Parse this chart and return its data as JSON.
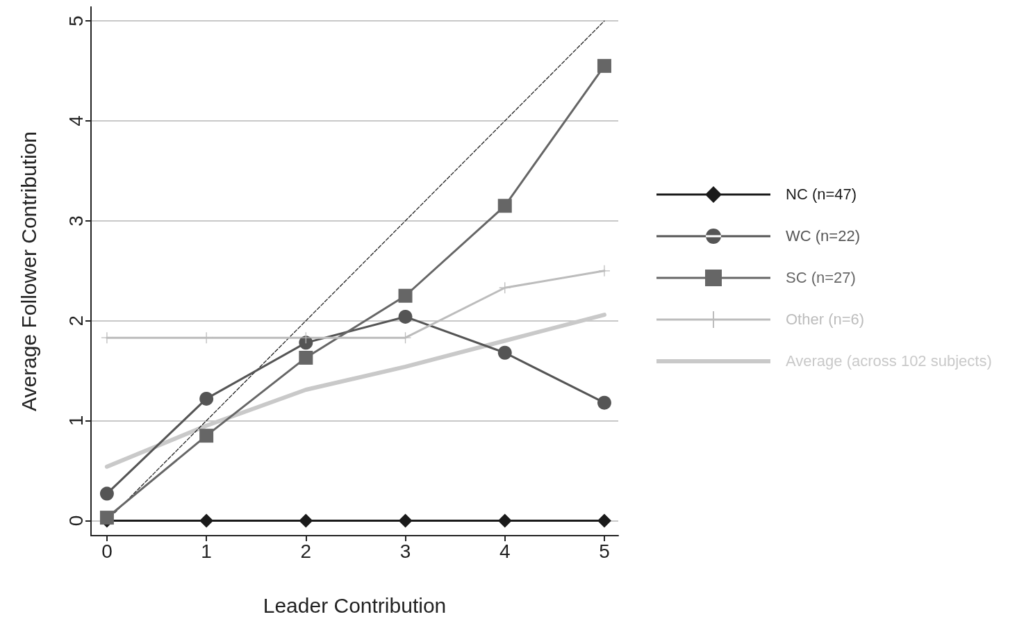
{
  "chart_data": {
    "type": "line",
    "xlabel": "Leader Contribution",
    "ylabel": "Average Follower Contribution",
    "x": [
      0,
      1,
      2,
      3,
      4,
      5
    ],
    "series": [
      {
        "name": "NC (n=47)",
        "color": "#1a1a1a",
        "marker": "diamond",
        "values": [
          0,
          0,
          0,
          0,
          0,
          0
        ]
      },
      {
        "name": "WC (n=22)",
        "color": "#555555",
        "marker": "circle",
        "values": [
          0.27,
          1.22,
          1.78,
          2.04,
          1.68,
          1.18
        ]
      },
      {
        "name": "SC (n=27)",
        "color": "#666666",
        "marker": "square",
        "values": [
          0.03,
          0.85,
          1.63,
          2.25,
          3.15,
          4.55
        ]
      },
      {
        "name": "Other (n=6)",
        "color": "#bcbcbc",
        "marker": "cross",
        "values": [
          1.83,
          1.83,
          1.83,
          1.83,
          2.33,
          2.5
        ]
      },
      {
        "name": "Average (across 102 subjects)",
        "color": "#c9c9c9",
        "marker": "none",
        "values": [
          0.54,
          0.95,
          1.31,
          1.54,
          1.8,
          2.06
        ]
      },
      {
        "color": "#222222",
        "marker": "none",
        "line_style": "dashed",
        "x": [
          0,
          5
        ],
        "values": [
          0,
          5
        ]
      }
    ],
    "xlim": [
      -0.16,
      5.14
    ],
    "ylim": [
      -0.15,
      5.14
    ],
    "xticks": [
      0,
      1,
      2,
      3,
      4,
      5
    ],
    "yticks": [
      0,
      1,
      2,
      3,
      4,
      5
    ],
    "grid": "y",
    "legend": "right"
  }
}
